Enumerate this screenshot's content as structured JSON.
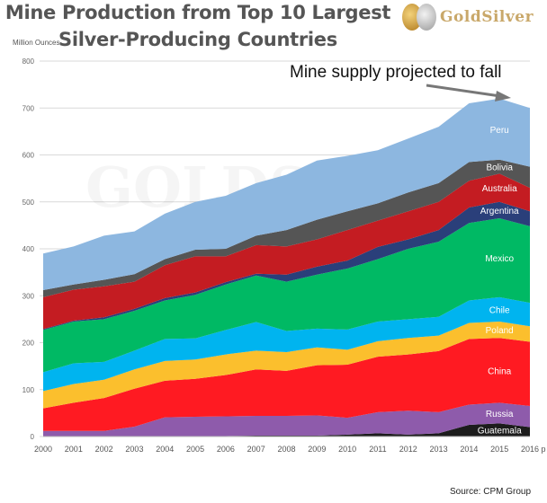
{
  "title_line1": "Mine Production from Top 10 Largest",
  "title_line2": "Silver-Producing  Countries",
  "logo_text": "GoldSilver",
  "annotation": "Mine supply projected to fall",
  "source": "Source: CPM Group",
  "chart_data": {
    "type": "area",
    "stacked": true,
    "title": "Mine Production from Top 10 Largest Silver-Producing Countries",
    "ylabel": "Million Ounces",
    "xlabel": "",
    "ylim": [
      0,
      800
    ],
    "yticks": [
      "0",
      "100",
      "200",
      "300",
      "400",
      "500",
      "600",
      "700",
      "800"
    ],
    "categories": [
      "2000",
      "2001",
      "2002",
      "2003",
      "2004",
      "2005",
      "2006",
      "2007",
      "2008",
      "2009",
      "2010",
      "2011",
      "2012",
      "2013",
      "2014",
      "2015",
      "2016 p"
    ],
    "grid": true,
    "series": [
      {
        "name": "Guatemala",
        "color": "#1c1c1c",
        "values": [
          0,
          0,
          0,
          0,
          0,
          0,
          1,
          2,
          2,
          2,
          4,
          7,
          4,
          7,
          25,
          28,
          20
        ]
      },
      {
        "name": "Russia",
        "color": "#8e5bab",
        "values": [
          12,
          12,
          12,
          21,
          41,
          42,
          42,
          42,
          42,
          43,
          36,
          45,
          51,
          45,
          43,
          44,
          45
        ]
      },
      {
        "name": "China",
        "color": "#ff1a22",
        "values": [
          48,
          60,
          70,
          81,
          78,
          81,
          88,
          99,
          96,
          107,
          113,
          118,
          120,
          130,
          140,
          138,
          137
        ]
      },
      {
        "name": "Poland",
        "color": "#fbbf2d",
        "values": [
          37,
          40,
          39,
          41,
          42,
          41,
          44,
          40,
          40,
          38,
          32,
          33,
          35,
          33,
          34,
          35,
          33
        ]
      },
      {
        "name": "Chile",
        "color": "#00b4ef",
        "values": [
          40,
          44,
          38,
          40,
          47,
          45,
          52,
          61,
          45,
          40,
          43,
          42,
          40,
          40,
          48,
          52,
          50
        ]
      },
      {
        "name": "Mexico",
        "color": "#00b964",
        "values": [
          90,
          89,
          91,
          85,
          82,
          93,
          97,
          99,
          105,
          115,
          130,
          133,
          150,
          160,
          165,
          168,
          163
        ]
      },
      {
        "name": "Argentina",
        "color": "#2a3f7a",
        "values": [
          2,
          2,
          4,
          4,
          5,
          5,
          5,
          4,
          15,
          17,
          17,
          26,
          20,
          25,
          33,
          35,
          32
        ]
      },
      {
        "name": "Australia",
        "color": "#c41c22",
        "values": [
          68,
          66,
          66,
          58,
          70,
          77,
          55,
          61,
          60,
          58,
          65,
          56,
          60,
          60,
          57,
          60,
          50
        ]
      },
      {
        "name": "Bolivia",
        "color": "#555555",
        "values": [
          15,
          11,
          14,
          16,
          13,
          14,
          16,
          20,
          35,
          42,
          40,
          37,
          40,
          40,
          40,
          30,
          45
        ]
      },
      {
        "name": "Peru",
        "color": "#8db7e0",
        "values": [
          78,
          81,
          94,
          91,
          97,
          102,
          113,
          112,
          118,
          126,
          118,
          113,
          115,
          120,
          125,
          130,
          125
        ]
      }
    ]
  }
}
